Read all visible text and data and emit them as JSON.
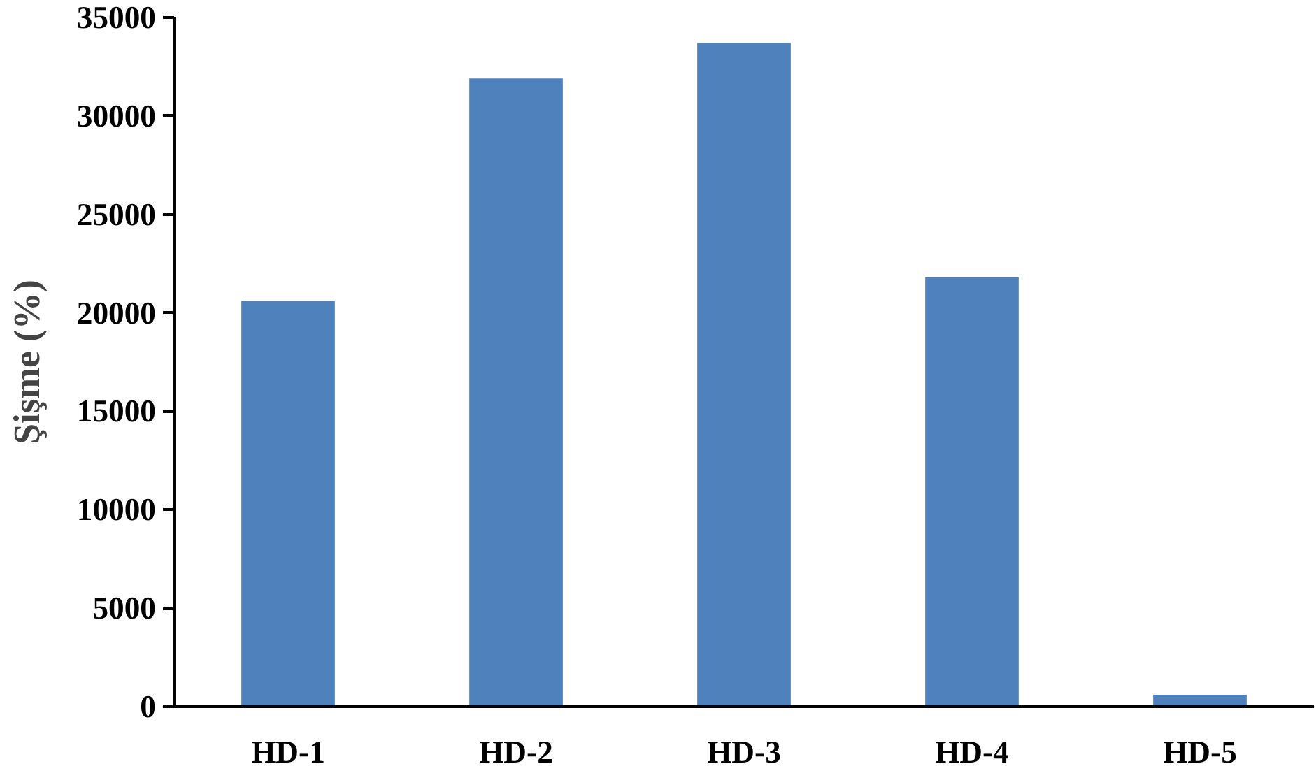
{
  "chart_data": {
    "type": "bar",
    "ylabel": "Şişme (%)",
    "categories": [
      "HD-1",
      "HD-2",
      "HD-3",
      "HD-4",
      "HD-5"
    ],
    "values": [
      20600,
      31900,
      33700,
      21800,
      600
    ],
    "color": "#4f81bd",
    "ylim": [
      0,
      35000
    ],
    "yticks": [
      0,
      5000,
      10000,
      15000,
      20000,
      25000,
      30000,
      35000
    ],
    "grid": false
  }
}
